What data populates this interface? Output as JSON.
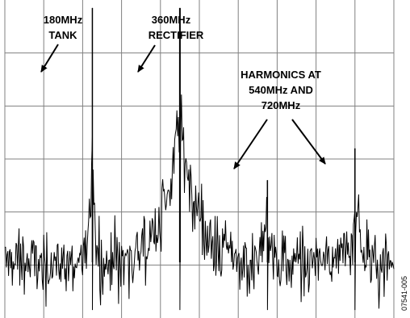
{
  "figure_id": "07541-005",
  "colors": {
    "trace": "#000000",
    "grid": "#808080",
    "background": "#ffffff"
  },
  "chart_data": {
    "type": "line",
    "title": "",
    "xlabel": "",
    "ylabel": "",
    "xunit": "MHz",
    "xlim": [
      0,
      800
    ],
    "ylim": [
      0,
      6
    ],
    "grid": true,
    "x_divisions": 10,
    "y_divisions": 6,
    "noise_floor_div": 1.05,
    "peaks": [
      {
        "name": "180MHz TANK",
        "x": 180,
        "y_div": 5.85,
        "width": 0.8
      },
      {
        "name": "360MHz RECTIFIER",
        "x": 360,
        "y_div": 5.85,
        "width": 6.0
      },
      {
        "name": "540MHz harmonic",
        "x": 540,
        "y_div": 2.6,
        "width": 1.2
      },
      {
        "name": "720MHz harmonic",
        "x": 720,
        "y_div": 3.2,
        "width": 1.8
      }
    ],
    "annotations": [
      {
        "id": "tank",
        "lines": [
          "180MHz",
          "TANK"
        ]
      },
      {
        "id": "rectifier",
        "lines": [
          "360MHz",
          "RECTIFIER"
        ]
      },
      {
        "id": "harmonics",
        "lines": [
          "HARMONICS AT",
          "540MHz AND",
          "720MHz"
        ]
      }
    ]
  }
}
